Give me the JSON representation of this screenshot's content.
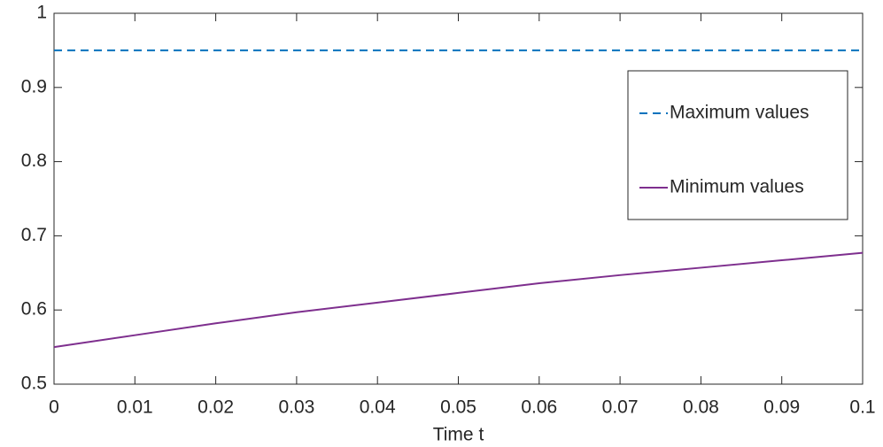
{
  "chart_data": {
    "type": "line",
    "xlabel": "Time t",
    "x": [
      0,
      0.01,
      0.02,
      0.03,
      0.04,
      0.05,
      0.06,
      0.07,
      0.08,
      0.09,
      0.1
    ],
    "series": [
      {
        "name": "Maximum values",
        "color": "#0072bd",
        "dash": true,
        "values": [
          0.95,
          0.95,
          0.95,
          0.95,
          0.95,
          0.95,
          0.95,
          0.95,
          0.95,
          0.95,
          0.95
        ]
      },
      {
        "name": "Minimum values",
        "color": "#7e2f8e",
        "dash": false,
        "values": [
          0.55,
          0.566,
          0.582,
          0.597,
          0.61,
          0.623,
          0.636,
          0.647,
          0.657,
          0.667,
          0.677
        ]
      }
    ],
    "xlim": [
      0,
      0.1
    ],
    "xticks": [
      0,
      0.01,
      0.02,
      0.03,
      0.04,
      0.05,
      0.06,
      0.07,
      0.08,
      0.09,
      0.1
    ],
    "ylim": [
      0.5,
      1
    ],
    "yticks": [
      0.5,
      0.6,
      0.7,
      0.8,
      0.9,
      1
    ],
    "grid": false,
    "legend": "upper right"
  }
}
